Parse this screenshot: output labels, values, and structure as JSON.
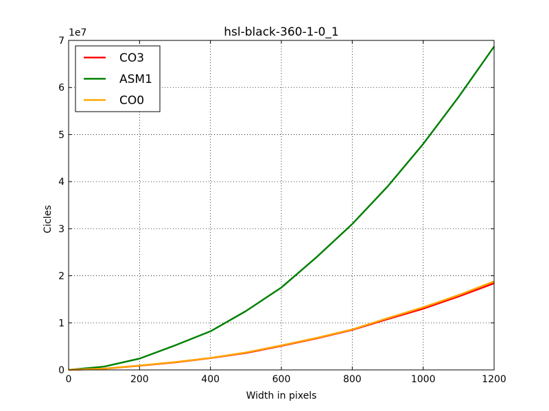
{
  "chart_data": {
    "type": "line",
    "title": "hsl-black-360-1-0_1",
    "xlabel": "Width in pixels",
    "ylabel": "Cicles",
    "offset_text": "1e7",
    "y_scale_factor": 10000000,
    "xlim": [
      0,
      1200
    ],
    "ylim": [
      0,
      70000000
    ],
    "x_ticks": [
      0,
      200,
      400,
      600,
      800,
      1000,
      1200
    ],
    "x_tick_labels": [
      "0",
      "200",
      "400",
      "600",
      "800",
      "1000",
      "1200"
    ],
    "y_ticks": [
      0,
      10000000,
      20000000,
      30000000,
      40000000,
      50000000,
      60000000,
      70000000
    ],
    "y_tick_labels": [
      "0",
      "1",
      "2",
      "3",
      "4",
      "5",
      "6",
      "7"
    ],
    "grid": true,
    "legend_position": "top-left",
    "series": [
      {
        "name": "CO3",
        "color": "#ff0000",
        "x": [
          0,
          100,
          200,
          300,
          400,
          500,
          600,
          700,
          800,
          900,
          1000,
          1100,
          1200
        ],
        "y": [
          0,
          250000,
          900000,
          1600000,
          2500000,
          3600000,
          5100000,
          6700000,
          8500000,
          10800000,
          13000000,
          15600000,
          18400000
        ]
      },
      {
        "name": "ASM1",
        "color": "#008000",
        "x": [
          0,
          100,
          200,
          300,
          400,
          500,
          600,
          700,
          800,
          900,
          1000,
          1100,
          1200
        ],
        "y": [
          0,
          700000,
          2400000,
          5200000,
          8200000,
          12500000,
          17500000,
          24000000,
          31000000,
          39000000,
          48000000,
          58000000,
          68700000
        ]
      },
      {
        "name": "CO0",
        "color": "#ffa500",
        "x": [
          0,
          100,
          200,
          300,
          400,
          500,
          600,
          700,
          800,
          900,
          1000,
          1100,
          1200
        ],
        "y": [
          0,
          260000,
          920000,
          1650000,
          2550000,
          3700000,
          5200000,
          6800000,
          8600000,
          11000000,
          13300000,
          15900000,
          18800000
        ]
      }
    ]
  }
}
